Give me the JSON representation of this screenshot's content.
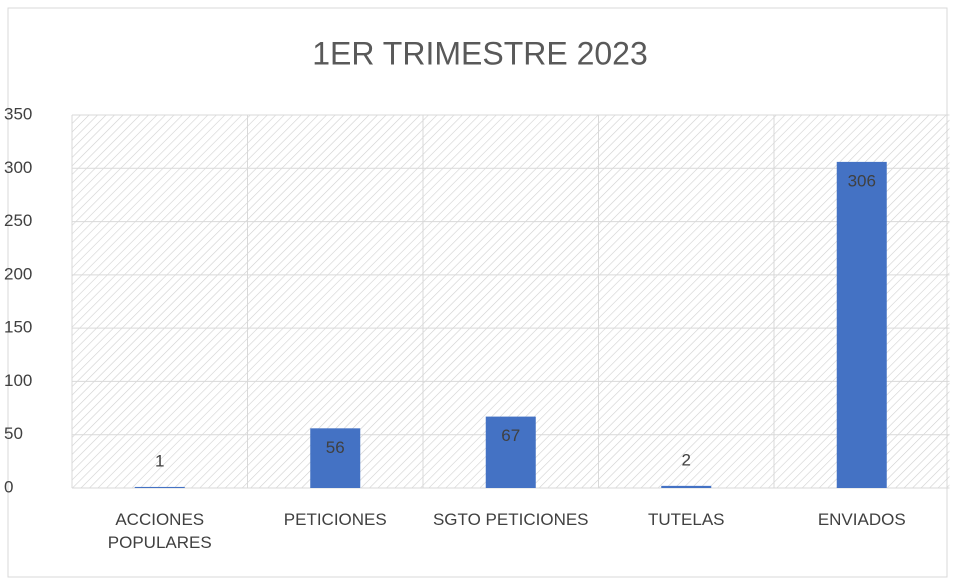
{
  "chart_data": {
    "type": "bar",
    "title": "1ER TRIMESTRE 2023",
    "categories": [
      "ACCIONES POPULARES",
      "PETICIONES",
      "SGTO PETICIONES",
      "TUTELAS",
      "ENVIADOS"
    ],
    "values": [
      1,
      56,
      67,
      2,
      306
    ],
    "color": "#4472c4",
    "ylim": [
      0,
      350
    ],
    "yticks": [
      0,
      50,
      100,
      150,
      200,
      250,
      300,
      350
    ],
    "grid": true
  }
}
